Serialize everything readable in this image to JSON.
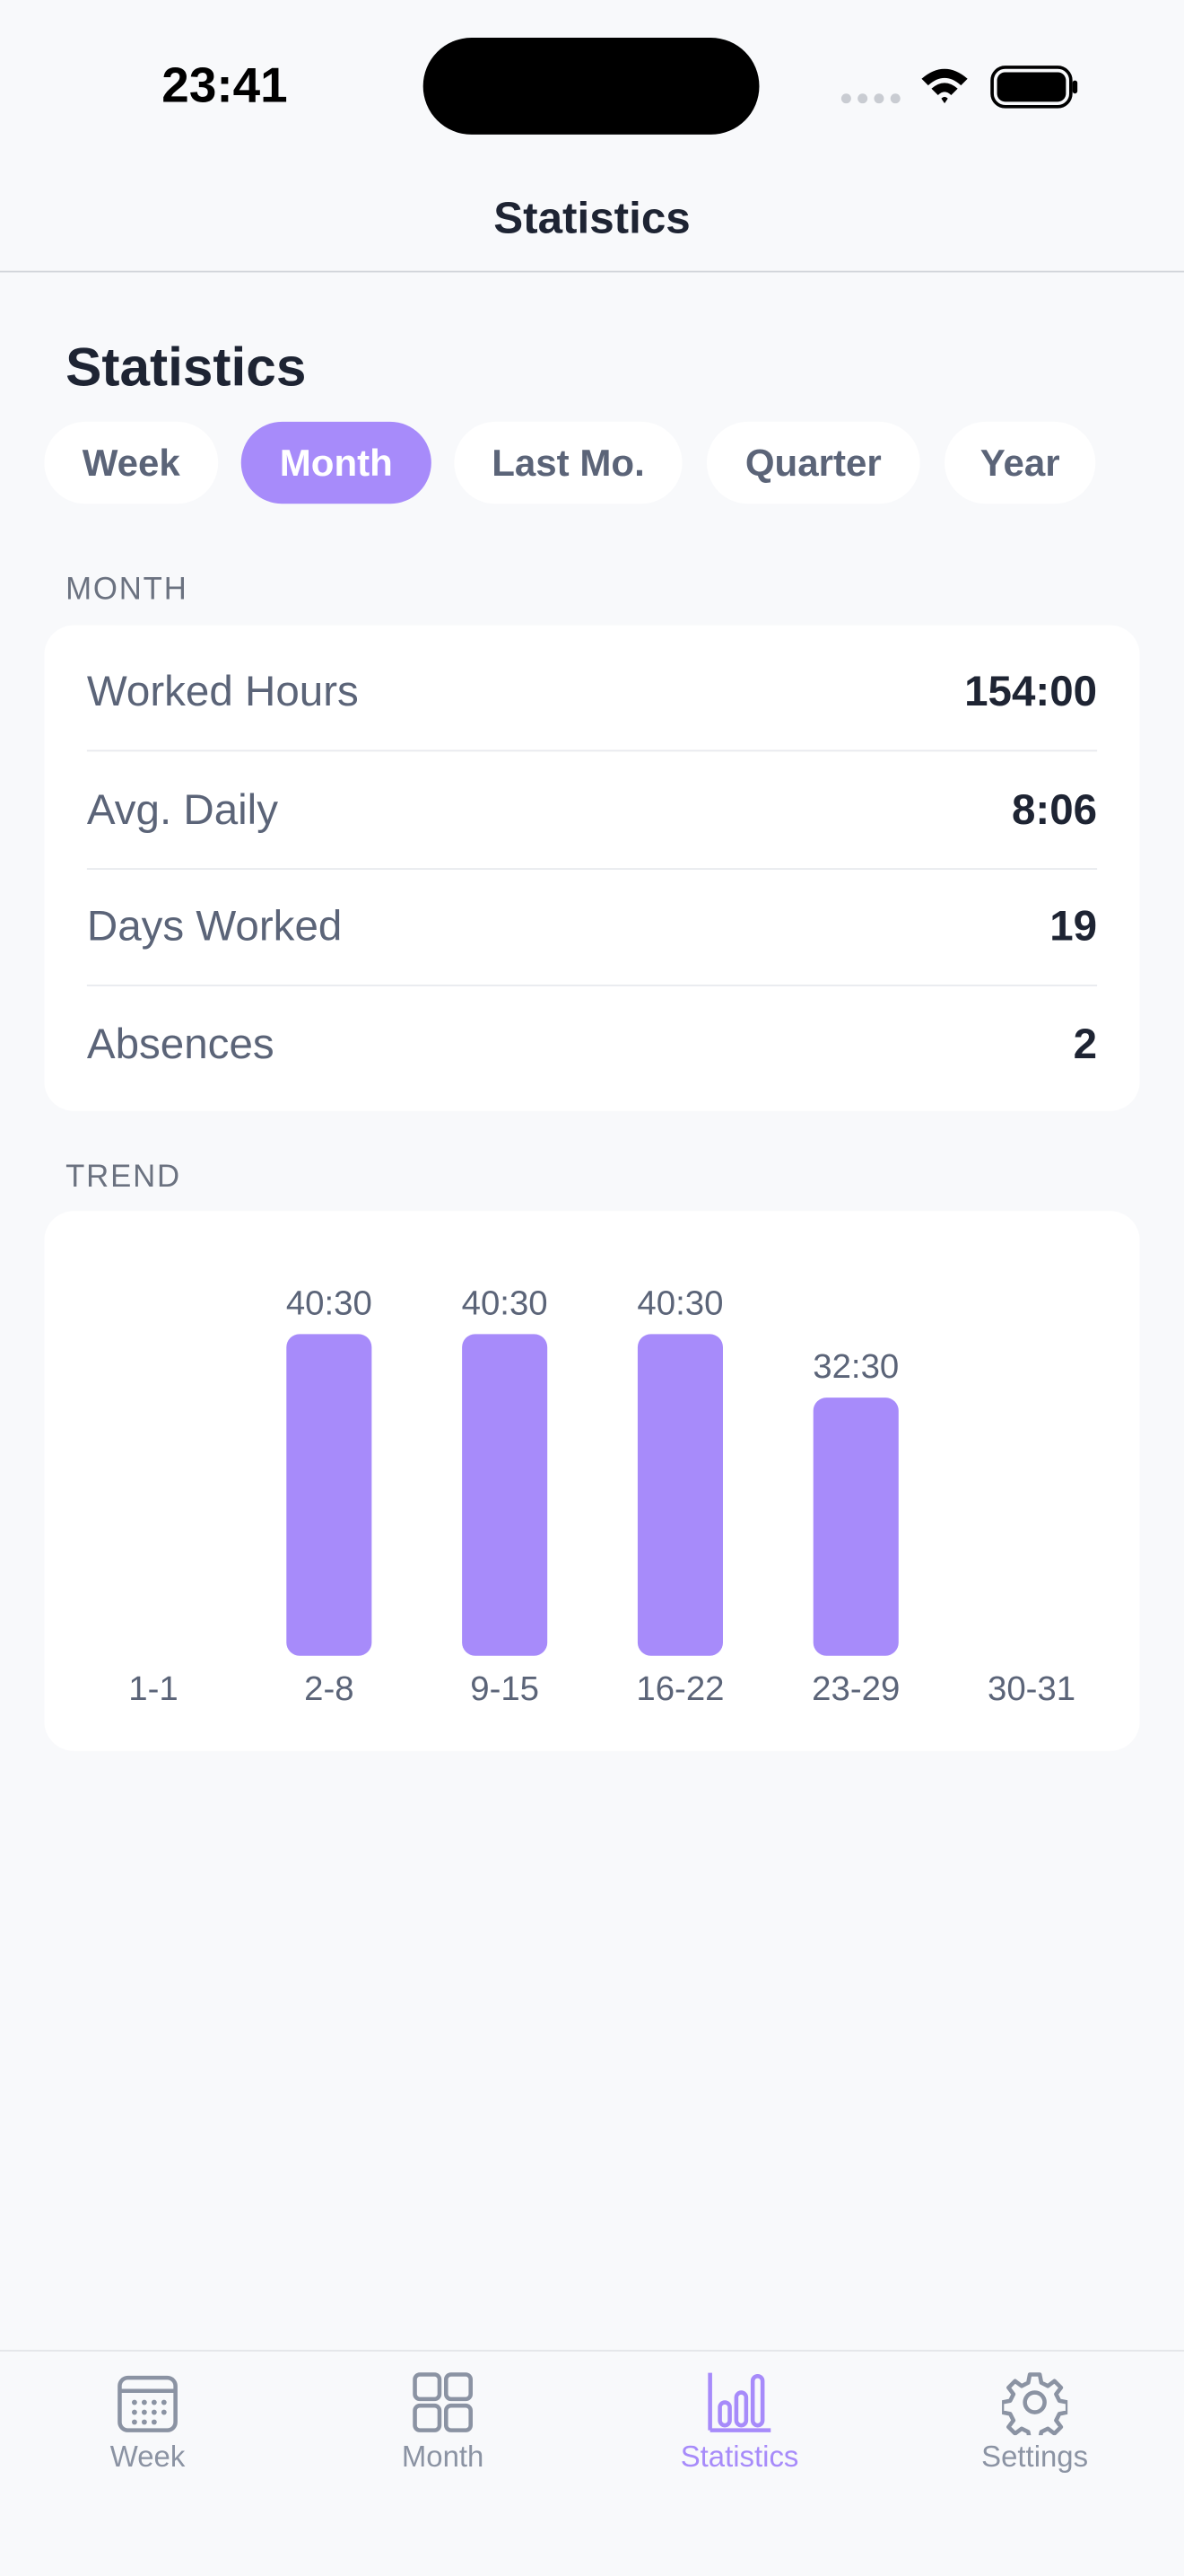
{
  "status_bar": {
    "time": "23:41"
  },
  "nav": {
    "title": "Statistics"
  },
  "heading": "Statistics",
  "segments": {
    "items": [
      "Week",
      "Month",
      "Last Mo.",
      "Quarter",
      "Year"
    ],
    "selected_index": 1
  },
  "summary": {
    "label": "MONTH",
    "rows": [
      {
        "label": "Worked Hours",
        "value": "154:00"
      },
      {
        "label": "Avg. Daily",
        "value": "8:06"
      },
      {
        "label": "Days Worked",
        "value": 19
      },
      {
        "label": "Absences",
        "value": 2
      }
    ]
  },
  "chart_data": {
    "type": "bar",
    "title": "TREND",
    "categories": [
      "1-1",
      "2-8",
      "9-15",
      "16-22",
      "23-29",
      "30-31"
    ],
    "values": [
      0,
      40.5,
      40.5,
      40.5,
      32.5,
      0
    ],
    "value_labels": [
      null,
      "40:30",
      "40:30",
      "40:30",
      "32:30",
      null
    ],
    "color": "#a78bfa",
    "ylim": [
      0,
      40.5
    ]
  },
  "tab_bar": {
    "items": [
      "Week",
      "Month",
      "Statistics",
      "Settings"
    ],
    "selected_index": 2
  }
}
